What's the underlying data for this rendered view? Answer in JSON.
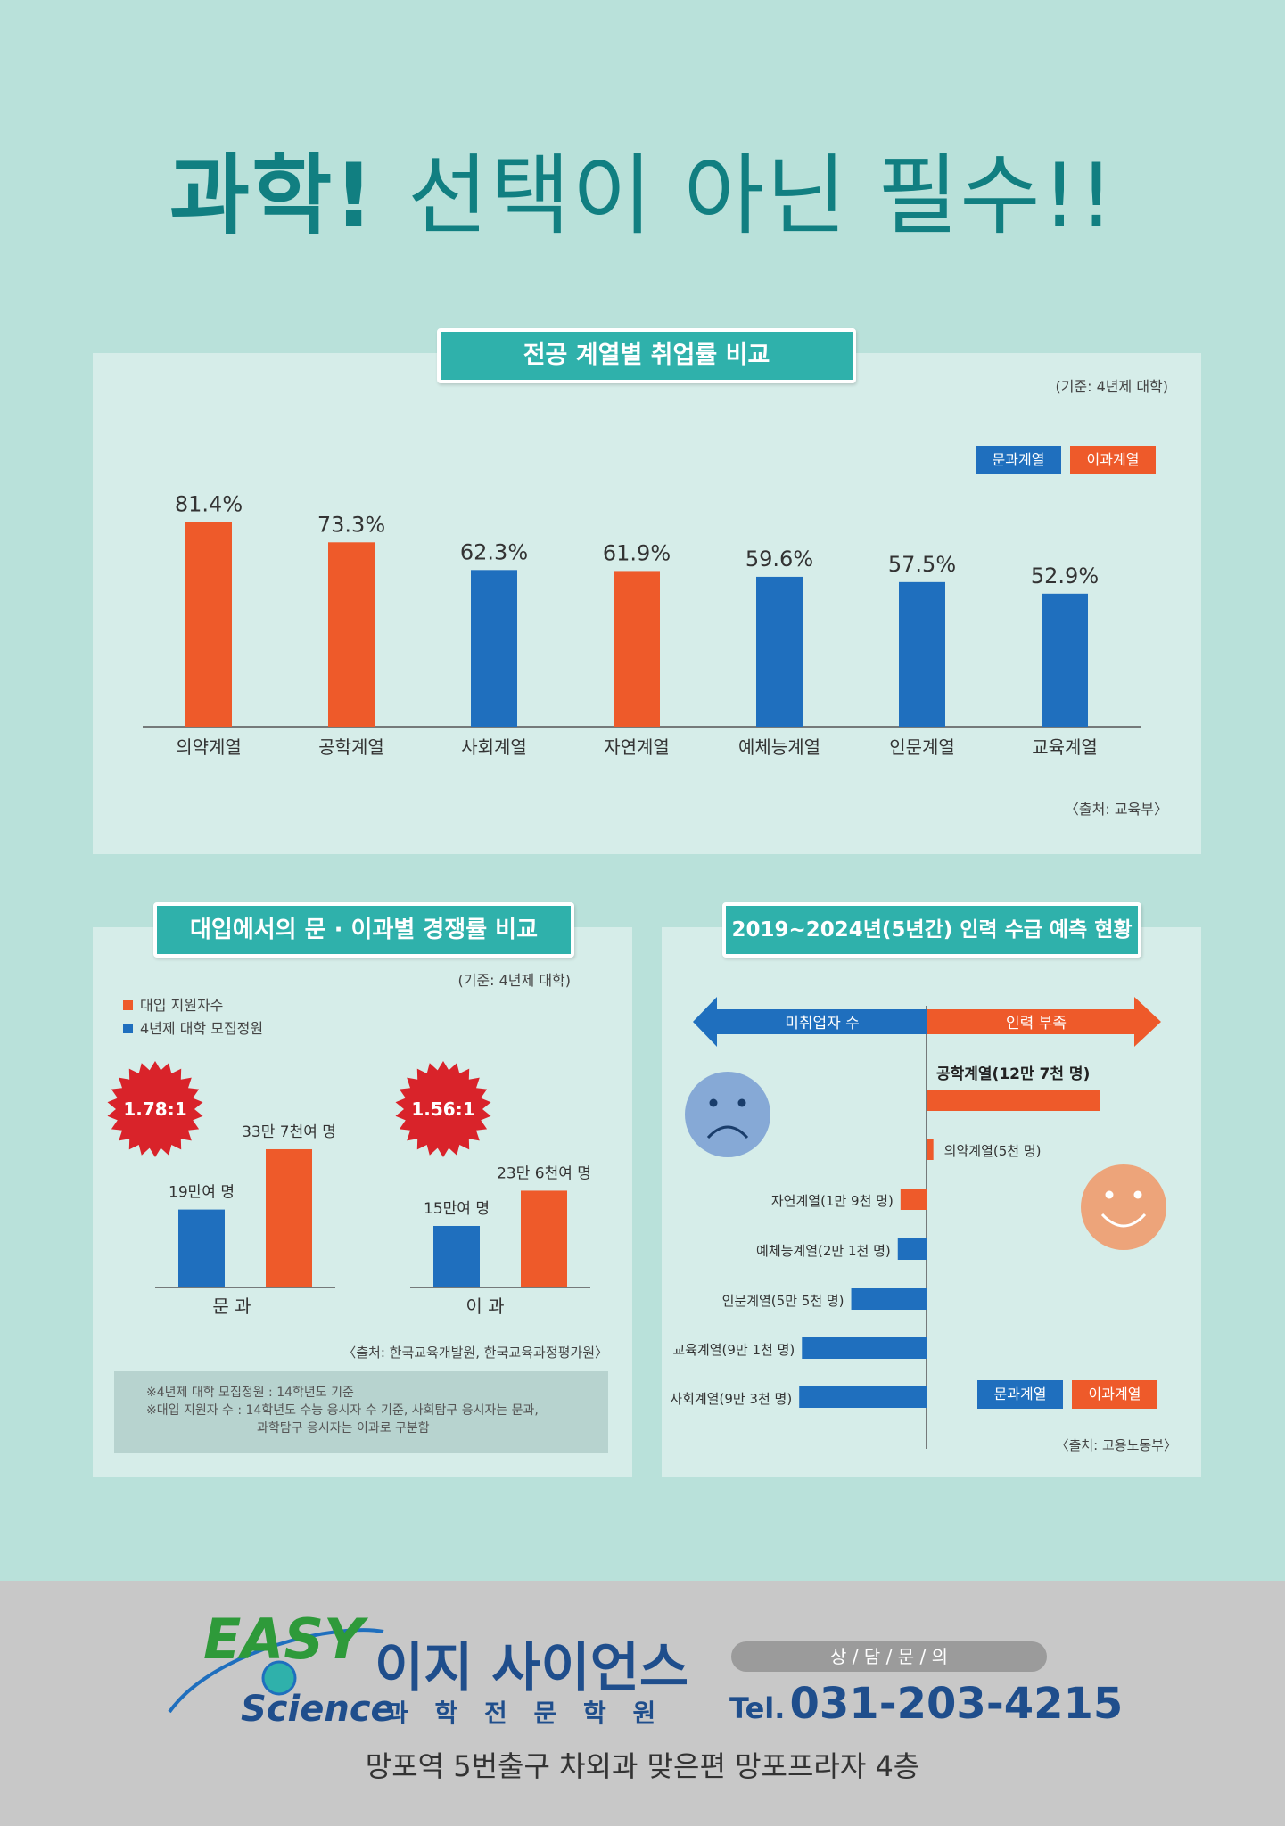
{
  "title": {
    "bold": "과학!",
    "light": "선택이 아닌 필수!!"
  },
  "colors": {
    "liberal": "#1f6fbe",
    "science": "#ee5a2a",
    "teal": "#2fb1ab",
    "bg": "#b9e1da",
    "panel": "#d6ede9"
  },
  "legend": {
    "liberal": "문과계열",
    "science": "이과계열"
  },
  "chart_data": [
    {
      "type": "bar",
      "title": "전공 계열별 취업률 비교",
      "note": "(기준: 4년제 대학)",
      "source": "〈출처: 교육부〉",
      "categories": [
        "의약계열",
        "공학계열",
        "사회계열",
        "자연계열",
        "예체능계열",
        "인문계열",
        "교육계열"
      ],
      "values": [
        81.4,
        73.3,
        62.3,
        61.9,
        59.6,
        57.5,
        52.9
      ],
      "labels": [
        "81.4%",
        "73.3%",
        "62.3%",
        "61.9%",
        "59.6%",
        "57.5%",
        "52.9%"
      ],
      "groups": [
        "science",
        "science",
        "liberal",
        "science",
        "liberal",
        "liberal",
        "liberal"
      ],
      "unit": "%"
    },
    {
      "type": "bar",
      "title": "대입에서의 문 · 이과별 경쟁률 비교",
      "note": "(기준: 4년제 대학)",
      "series": [
        {
          "name": "4년제 대학 모집정원",
          "values": [
            19,
            15
          ],
          "labels": [
            "19만여 명",
            "15만여 명"
          ]
        },
        {
          "name": "대입 지원자수",
          "values": [
            33.7,
            23.6
          ],
          "labels": [
            "33만 7천여 명",
            "23만 6천여 명"
          ]
        }
      ],
      "categories": [
        "문 과",
        "이 과"
      ],
      "ratios": [
        "1.78:1",
        "1.56:1"
      ],
      "source": "〈출처: 한국교육개발원, 한국교육과정평가원〉",
      "footnotes": [
        "※4년제 대학 모집정원 : 14학년도 기준",
        "※대입 지원자 수 : 14학년도 수능 응시자 수 기준, 사회탐구 응시자는 문과,",
        "과학탐구 응시자는 이과로 구분함"
      ]
    },
    {
      "type": "bar",
      "title": "2019~2024년(5년간) 인력 수급 예측 현황",
      "left_label": "미취업자 수",
      "right_label": "인력 부족",
      "categories": [
        "공학계열",
        "의약계열",
        "자연계열",
        "예체능계열",
        "인문계열",
        "교육계열",
        "사회계열"
      ],
      "values": [
        127000,
        5000,
        -19000,
        -21000,
        -55000,
        -91000,
        -93000
      ],
      "labels": [
        "공학계열(12만 7천 명)",
        "의약계열(5천 명)",
        "자연계열(1만 9천 명)",
        "예체능계열(2만 1천 명)",
        "인문계열(5만 5천 명)",
        "교육계열(9만 1천 명)",
        "사회계열(9만 3천 명)"
      ],
      "groups": [
        "science",
        "science",
        "science",
        "liberal",
        "liberal",
        "liberal",
        "liberal"
      ],
      "source": "〈출처: 고용노동부〉"
    }
  ],
  "footer": {
    "logo_easy": "EASY",
    "logo_science": "Science",
    "academy_name": "이지 사이언스",
    "academy_sub": "과 학 전 문 학 원",
    "contact_label": "상 / 담 / 문 / 의",
    "tel_prefix": "Tel.",
    "tel": "031-203-4215",
    "address": "망포역 5번출구 차외과 맞은편 망포프라자 4층"
  }
}
